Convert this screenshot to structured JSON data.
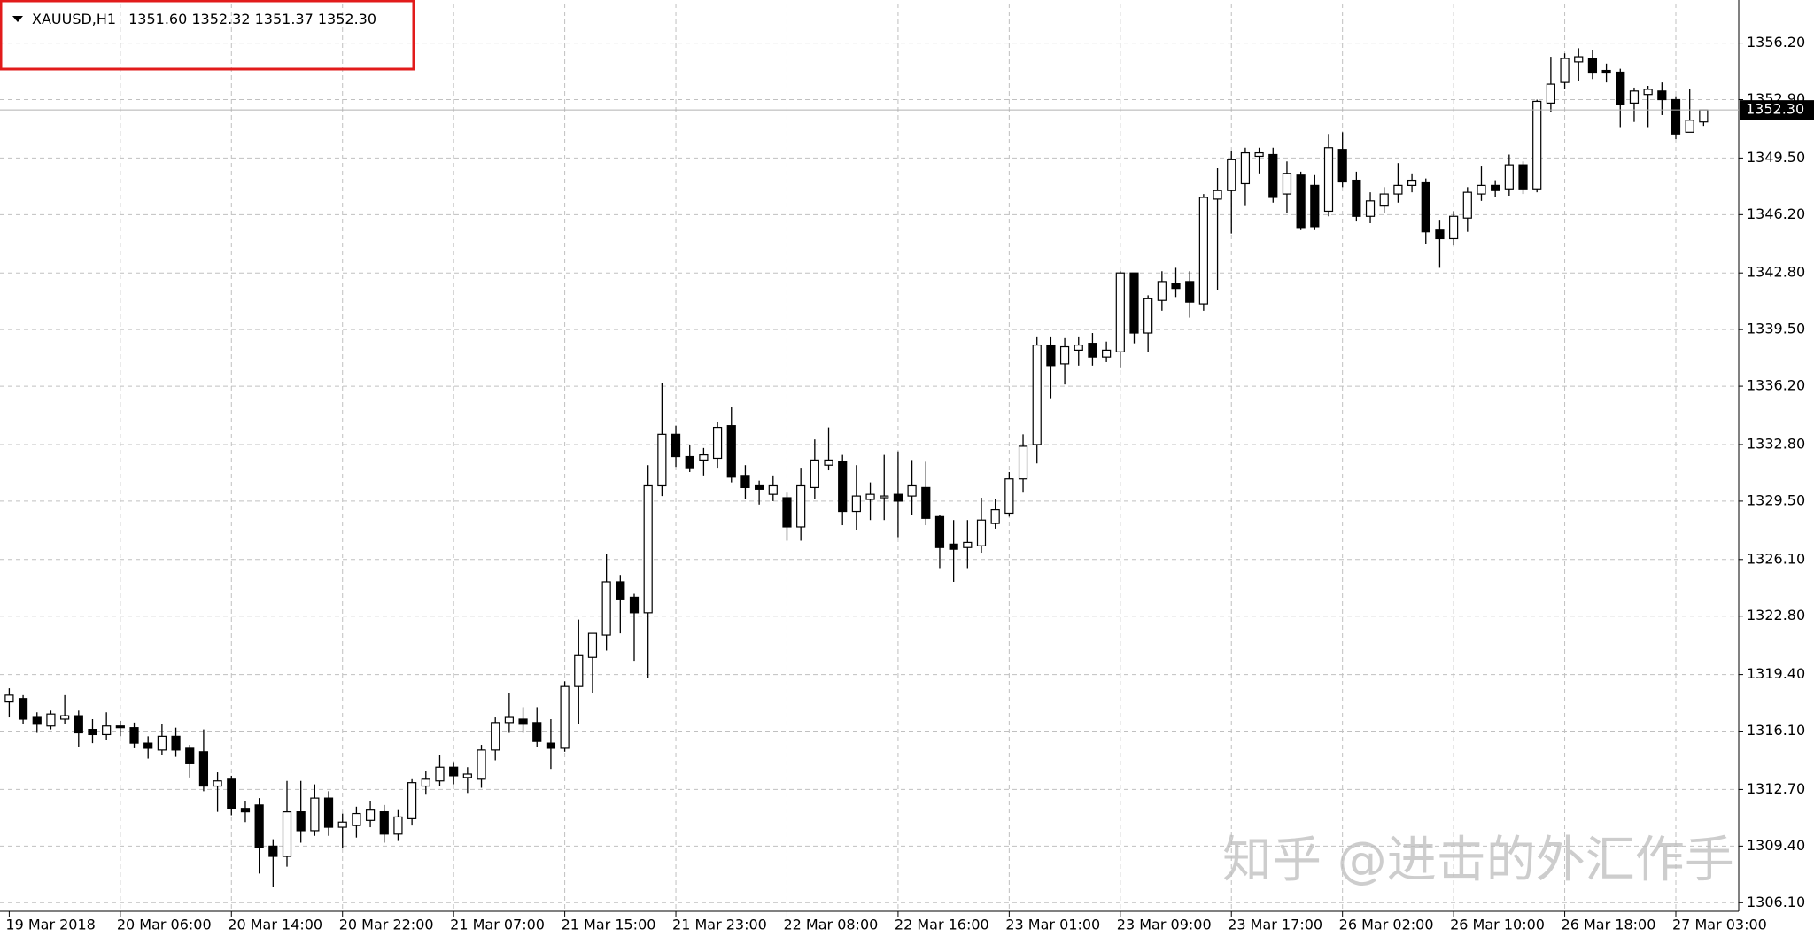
{
  "chart_data": {
    "type": "candlestick",
    "title": "XAUUSD,H1",
    "header_values": "1351.60 1352.32 1351.37 1352.30",
    "watermark": "知乎 @进击的外汇作手",
    "categories": [
      "19 Mar 2018",
      null,
      null,
      null,
      null,
      null,
      null,
      null,
      "20 Mar 06:00",
      null,
      null,
      null,
      null,
      null,
      null,
      null,
      "20 Mar 14:00",
      null,
      null,
      null,
      null,
      null,
      null,
      null,
      "20 Mar 22:00",
      null,
      null,
      null,
      null,
      null,
      null,
      null,
      "21 Mar 07:00",
      null,
      null,
      null,
      null,
      null,
      null,
      null,
      "21 Mar 15:00",
      null,
      null,
      null,
      null,
      null,
      null,
      null,
      "21 Mar 23:00",
      null,
      null,
      null,
      null,
      null,
      null,
      null,
      "22 Mar 08:00",
      null,
      null,
      null,
      null,
      null,
      null,
      null,
      "22 Mar 16:00",
      null,
      null,
      null,
      null,
      null,
      null,
      null,
      "23 Mar 01:00",
      null,
      null,
      null,
      null,
      null,
      null,
      null,
      "23 Mar 09:00",
      null,
      null,
      null,
      null,
      null,
      null,
      null,
      "23 Mar 17:00",
      null,
      null,
      null,
      null,
      null,
      null,
      null,
      "26 Mar 02:00",
      null,
      null,
      null,
      null,
      null,
      null,
      null,
      "26 Mar 10:00",
      null,
      null,
      null,
      null,
      null,
      null,
      null,
      "26 Mar 18:00",
      null,
      null,
      null,
      null,
      null,
      null,
      null,
      "27 Mar 03:00",
      null,
      null
    ],
    "open": [
      1317.8,
      1318.0,
      1316.9,
      1316.4,
      1316.8,
      1317.0,
      1316.2,
      1315.9,
      1316.4,
      1316.3,
      1315.4,
      1315.0,
      1315.8,
      1315.1,
      1314.9,
      1312.9,
      1313.3,
      1311.6,
      1311.8,
      1309.4,
      1308.8,
      1311.4,
      1310.3,
      1312.2,
      1310.5,
      1310.6,
      1310.9,
      1311.4,
      1310.1,
      1311.0,
      1312.9,
      1313.2,
      1314.0,
      1313.4,
      1313.3,
      1315.0,
      1316.6,
      1316.8,
      1316.6,
      1315.4,
      1315.1,
      1318.7,
      1320.4,
      1321.7,
      1324.8,
      1323.9,
      1323.0,
      1330.4,
      1333.4,
      1332.1,
      1331.9,
      1332.0,
      1333.9,
      1331.0,
      1330.4,
      1329.9,
      1329.7,
      1328.0,
      1330.3,
      1331.6,
      1331.8,
      1328.9,
      1329.6,
      1329.7,
      1329.9,
      1329.8,
      1330.3,
      1328.6,
      1327.0,
      1326.8,
      1326.9,
      1328.2,
      1328.8,
      1330.8,
      1332.8,
      1338.6,
      1337.5,
      1338.3,
      1338.7,
      1337.9,
      1338.2,
      1342.8,
      1339.3,
      1341.2,
      1342.2,
      1342.3,
      1341.0,
      1347.1,
      1347.6,
      1348.0,
      1349.6,
      1349.7,
      1347.4,
      1348.5,
      1347.9,
      1346.4,
      1350.0,
      1348.2,
      1346.1,
      1346.7,
      1347.4,
      1347.9,
      1348.1,
      1345.3,
      1344.8,
      1346.0,
      1347.4,
      1347.9,
      1347.7,
      1349.1,
      1347.7,
      1352.7,
      1353.9,
      1355.1,
      1355.3,
      1354.6,
      1354.5,
      1352.7,
      1353.2,
      1353.4,
      1352.9,
      1351.0,
      1351.6
    ],
    "high": [
      1318.6,
      1318.2,
      1317.2,
      1317.3,
      1318.2,
      1317.3,
      1316.8,
      1317.2,
      1316.7,
      1316.6,
      1315.8,
      1316.5,
      1316.3,
      1315.3,
      1316.2,
      1313.7,
      1313.5,
      1312.0,
      1312.2,
      1309.8,
      1313.2,
      1313.2,
      1313.0,
      1312.6,
      1311.3,
      1311.7,
      1312.0,
      1311.8,
      1311.5,
      1313.3,
      1313.8,
      1314.7,
      1314.3,
      1314.0,
      1315.3,
      1316.9,
      1318.3,
      1317.5,
      1317.5,
      1316.8,
      1319.0,
      1322.6,
      1321.8,
      1326.4,
      1325.2,
      1324.1,
      1331.6,
      1336.4,
      1333.9,
      1332.8,
      1332.6,
      1334.1,
      1335.0,
      1331.6,
      1330.7,
      1331.0,
      1330.0,
      1331.4,
      1333.1,
      1333.8,
      1332.2,
      1331.6,
      1330.6,
      1332.2,
      1332.4,
      1331.9,
      1331.8,
      1328.7,
      1328.4,
      1328.4,
      1329.7,
      1329.6,
      1331.2,
      1333.4,
      1339.1,
      1339.1,
      1339.0,
      1339.1,
      1339.3,
      1338.8,
      1342.9,
      1342.8,
      1341.5,
      1342.9,
      1343.1,
      1342.9,
      1347.4,
      1348.9,
      1349.9,
      1350.1,
      1350.1,
      1350.1,
      1349.3,
      1348.7,
      1348.5,
      1350.9,
      1351.0,
      1348.7,
      1347.5,
      1347.8,
      1349.2,
      1348.6,
      1348.3,
      1345.9,
      1346.4,
      1347.8,
      1349.0,
      1348.2,
      1349.7,
      1349.3,
      1352.9,
      1355.4,
      1355.6,
      1355.9,
      1355.8,
      1355.0,
      1354.7,
      1353.6,
      1353.7,
      1353.9,
      1353.1,
      1353.5,
      1352.32
    ],
    "low": [
      1316.9,
      1316.5,
      1316.0,
      1316.2,
      1316.5,
      1315.2,
      1315.4,
      1315.6,
      1315.8,
      1315.1,
      1314.5,
      1314.7,
      1314.6,
      1313.4,
      1312.6,
      1311.4,
      1311.2,
      1310.8,
      1307.8,
      1307.0,
      1308.2,
      1309.6,
      1310.0,
      1310.0,
      1309.3,
      1309.9,
      1310.5,
      1309.6,
      1309.7,
      1310.6,
      1312.4,
      1312.9,
      1313.0,
      1312.5,
      1312.8,
      1314.4,
      1316.0,
      1316.0,
      1315.2,
      1313.9,
      1314.9,
      1316.5,
      1318.3,
      1320.8,
      1321.8,
      1320.2,
      1319.2,
      1329.8,
      1331.5,
      1331.2,
      1331.0,
      1331.4,
      1330.6,
      1329.6,
      1329.3,
      1329.5,
      1327.2,
      1327.2,
      1329.6,
      1331.3,
      1328.1,
      1327.8,
      1328.4,
      1328.4,
      1327.4,
      1328.7,
      1328.1,
      1325.6,
      1324.8,
      1325.6,
      1326.5,
      1327.9,
      1328.6,
      1330.0,
      1331.7,
      1335.5,
      1336.3,
      1337.4,
      1337.4,
      1337.6,
      1337.3,
      1338.7,
      1338.2,
      1340.6,
      1341.4,
      1340.2,
      1340.6,
      1341.8,
      1345.1,
      1346.7,
      1348.6,
      1346.9,
      1346.3,
      1345.3,
      1345.3,
      1346.1,
      1347.8,
      1345.8,
      1345.7,
      1346.3,
      1346.9,
      1347.5,
      1344.5,
      1343.1,
      1344.4,
      1345.2,
      1347.0,
      1347.2,
      1347.3,
      1347.4,
      1347.5,
      1352.2,
      1353.5,
      1354.0,
      1354.1,
      1353.9,
      1351.3,
      1351.6,
      1351.3,
      1352.0,
      1350.6,
      1351.0,
      1351.37
    ],
    "close": [
      1318.2,
      1316.8,
      1316.5,
      1317.1,
      1317.0,
      1316.0,
      1315.9,
      1316.4,
      1316.3,
      1315.4,
      1315.1,
      1315.8,
      1315.0,
      1314.2,
      1312.9,
      1313.2,
      1311.6,
      1311.4,
      1309.3,
      1308.8,
      1311.4,
      1310.3,
      1312.2,
      1310.5,
      1310.8,
      1311.3,
      1311.5,
      1310.1,
      1311.1,
      1313.1,
      1313.3,
      1314.0,
      1313.5,
      1313.6,
      1315.0,
      1316.6,
      1316.9,
      1316.5,
      1315.5,
      1315.1,
      1318.7,
      1320.5,
      1321.8,
      1324.8,
      1323.8,
      1323.0,
      1330.4,
      1333.4,
      1332.1,
      1331.4,
      1332.2,
      1333.8,
      1330.9,
      1330.3,
      1330.2,
      1330.4,
      1328.0,
      1330.4,
      1331.9,
      1331.9,
      1328.9,
      1329.8,
      1329.9,
      1329.8,
      1329.5,
      1330.4,
      1328.5,
      1326.8,
      1326.7,
      1327.1,
      1328.4,
      1329.0,
      1330.8,
      1332.7,
      1338.6,
      1337.4,
      1338.5,
      1338.6,
      1337.9,
      1338.3,
      1342.8,
      1339.3,
      1341.3,
      1342.3,
      1341.9,
      1341.1,
      1347.2,
      1347.6,
      1349.4,
      1349.8,
      1349.8,
      1347.2,
      1348.6,
      1345.4,
      1345.5,
      1350.1,
      1348.1,
      1346.1,
      1347.0,
      1347.4,
      1347.9,
      1348.2,
      1345.2,
      1344.8,
      1346.1,
      1347.5,
      1347.9,
      1347.6,
      1349.1,
      1347.7,
      1352.8,
      1353.8,
      1355.3,
      1355.4,
      1354.5,
      1354.5,
      1352.6,
      1353.4,
      1353.5,
      1352.9,
      1350.9,
      1351.7,
      1352.3
    ],
    "up_color": "#ffffff",
    "down_color": "#000000",
    "wick_color": "#000000",
    "ylim": [
      1305.6,
      1358.5
    ],
    "yticks": [
      {
        "value": 1356.2,
        "label": "1356.20"
      },
      {
        "value": 1352.9,
        "label": "1352.90"
      },
      {
        "value": 1349.5,
        "label": "1349.50"
      },
      {
        "value": 1346.2,
        "label": "1346.20"
      },
      {
        "value": 1342.8,
        "label": "1342.80"
      },
      {
        "value": 1339.5,
        "label": "1339.50"
      },
      {
        "value": 1336.2,
        "label": "1336.20"
      },
      {
        "value": 1332.8,
        "label": "1332.80"
      },
      {
        "value": 1329.5,
        "label": "1329.50"
      },
      {
        "value": 1326.1,
        "label": "1326.10"
      },
      {
        "value": 1322.8,
        "label": "1322.80"
      },
      {
        "value": 1319.4,
        "label": "1319.40"
      },
      {
        "value": 1316.1,
        "label": "1316.10"
      },
      {
        "value": 1312.7,
        "label": "1312.70"
      },
      {
        "value": 1309.4,
        "label": "1309.40"
      },
      {
        "value": 1306.1,
        "label": "1306.10"
      }
    ],
    "last_price": {
      "value": 1352.3,
      "label": "1352.30"
    },
    "grid": true
  }
}
